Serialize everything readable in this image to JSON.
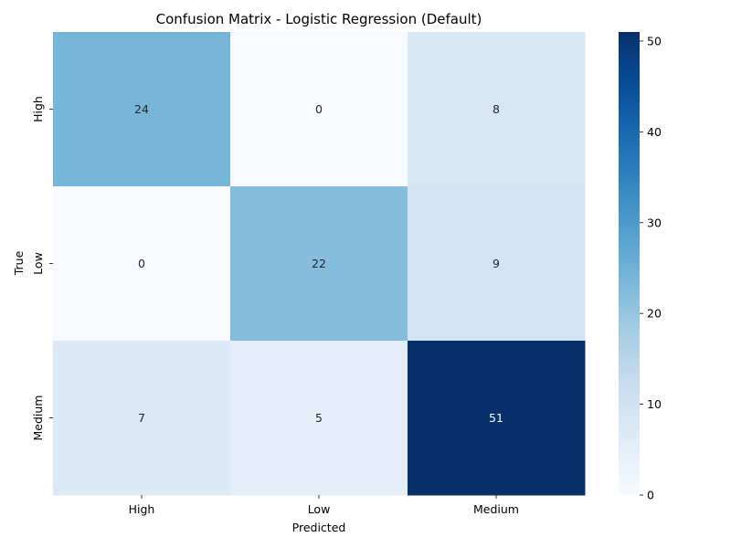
{
  "chart_data": {
    "type": "heatmap",
    "title": "Confusion Matrix - Logistic Regression (Default)",
    "xlabel": "Predicted",
    "ylabel": "True",
    "x_categories": [
      "High",
      "Low",
      "Medium"
    ],
    "y_categories": [
      "High",
      "Low",
      "Medium"
    ],
    "values": [
      [
        24,
        0,
        8
      ],
      [
        0,
        22,
        9
      ],
      [
        7,
        5,
        51
      ]
    ],
    "colormap": "Blues",
    "value_range": [
      0,
      51
    ],
    "colorbar": {
      "ticks": [
        0,
        10,
        20,
        30,
        40,
        50
      ],
      "placement": "right"
    },
    "annotations": true,
    "grid": false
  }
}
